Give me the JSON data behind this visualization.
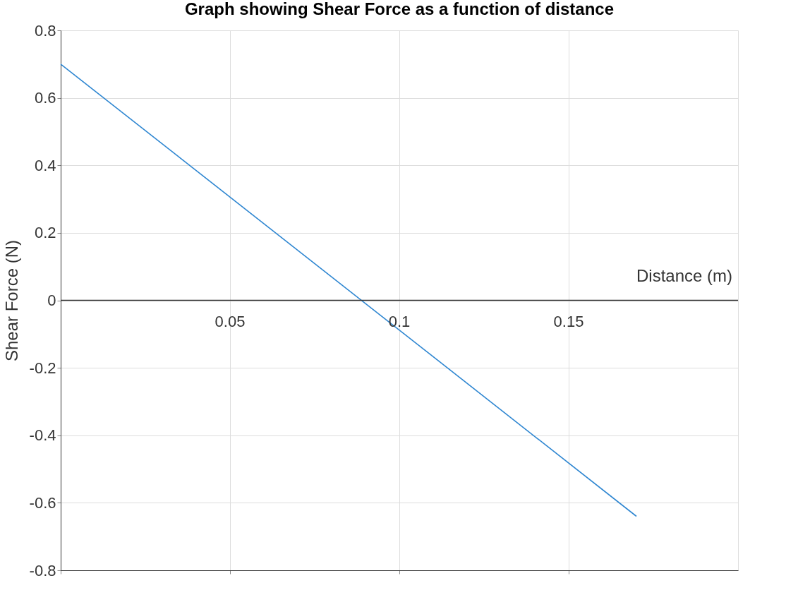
{
  "chart_data": {
    "type": "line",
    "title": "Graph showing Shear Force as a function of distance",
    "xlabel": "Distance (m)",
    "ylabel": "Shear Force (N)",
    "x": [
      0,
      0.17
    ],
    "series": [
      {
        "color": "#2e86d1",
        "values": [
          0.7,
          -0.64
        ]
      }
    ],
    "xlim": [
      0,
      0.2
    ],
    "xticks": [
      {
        "value": 0,
        "label": null
      },
      0.05,
      0.1,
      0.15
    ],
    "ylim": [
      -0.8,
      0.8
    ],
    "yticks": [
      -0.8,
      -0.6,
      -0.4,
      -0.2,
      0,
      0.2,
      0.4,
      0.6,
      0.8
    ],
    "grid": true
  }
}
